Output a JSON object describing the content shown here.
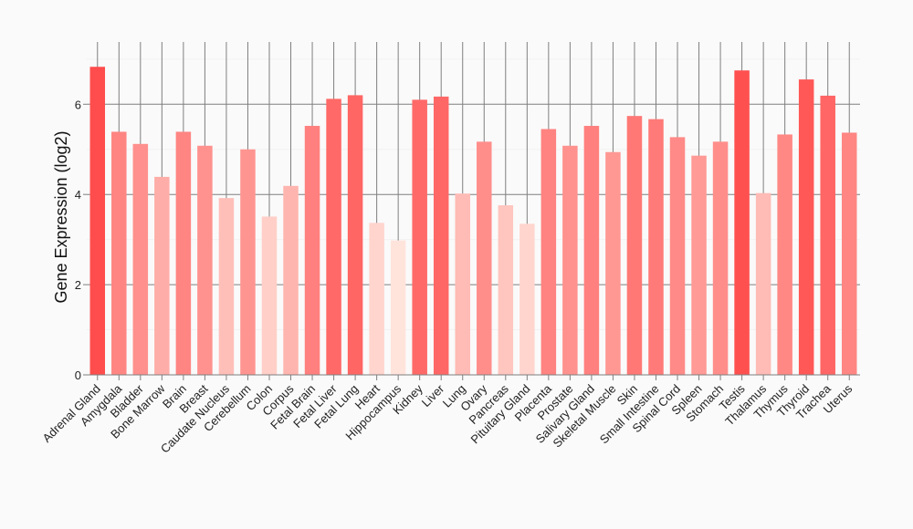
{
  "chart_data": {
    "type": "bar",
    "title": "",
    "xlabel": "",
    "ylabel": "Gene Expression (log2)",
    "ylim": [
      0,
      7.1
    ],
    "yticks": [
      0,
      2,
      4,
      6
    ],
    "grid": true,
    "categories": [
      "Adrenal Gland",
      "Amygdala",
      "Bladder",
      "Bone Marrow",
      "Brain",
      "Breast",
      "Caudate Nucleus",
      "Cerebellum",
      "Colon",
      "Corpus",
      "Fetal Brain",
      "Fetal Liver",
      "Fetal Lung",
      "Heart",
      "Hippocampus",
      "Kidney",
      "Liver",
      "Lung",
      "Ovary",
      "Pancreas",
      "Pituitary Gland",
      "Placenta",
      "Prostate",
      "Salivary Gland",
      "Skeletal Muscle",
      "Skin",
      "Small Intestine",
      "Spinal Cord",
      "Spleen",
      "Stomach",
      "Testis",
      "Thalamus",
      "Thymus",
      "Thyroid",
      "Trachea",
      "Uterus"
    ],
    "values": [
      6.83,
      5.39,
      5.12,
      4.39,
      5.39,
      5.08,
      3.92,
      5.0,
      3.51,
      4.19,
      5.52,
      6.12,
      6.2,
      3.37,
      2.98,
      6.1,
      6.17,
      4.02,
      5.17,
      3.76,
      3.35,
      5.45,
      5.08,
      5.52,
      4.94,
      5.74,
      5.67,
      5.27,
      4.86,
      5.17,
      6.75,
      4.03,
      5.33,
      6.55,
      6.19,
      5.37
    ],
    "color_high": "#ff4d4d",
    "color_low": "#ffe4dc"
  }
}
